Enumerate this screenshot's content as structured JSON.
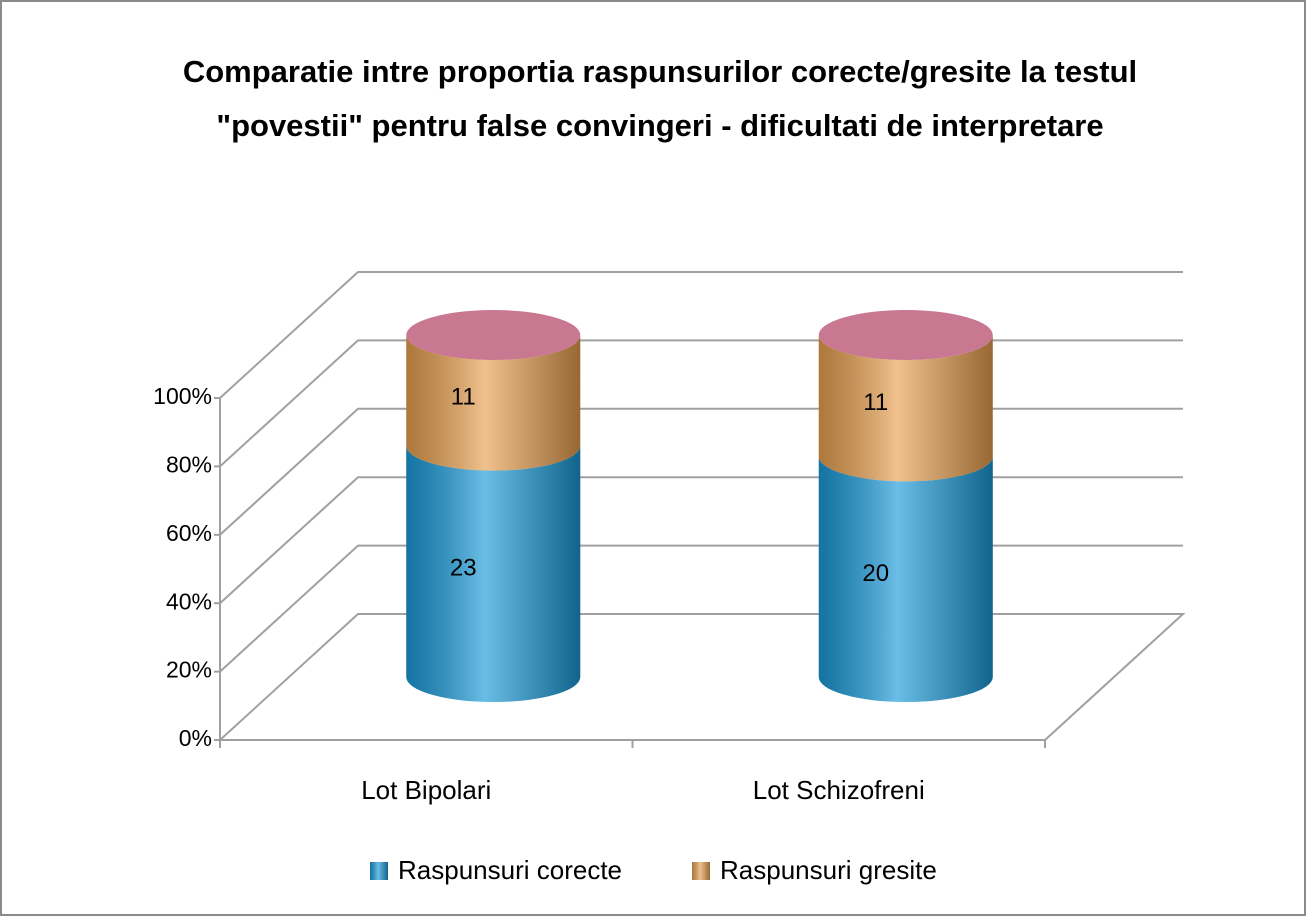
{
  "chart_data": {
    "type": "bar",
    "stack": "percent",
    "title": "Comparatie intre proportia raspunsurilor corecte/gresite la testul",
    "subtitle": "\"povestii\" pentru false convingeri - dificultati de interpretare",
    "categories": [
      "Lot Bipolari",
      "Lot Schizofreni"
    ],
    "series": [
      {
        "name": "Raspunsuri corecte",
        "color": "#1a9ad8",
        "values": [
          23,
          20
        ]
      },
      {
        "name": "Raspunsuri gresite",
        "color": "#e8a050",
        "values": [
          11,
          11
        ]
      }
    ],
    "ylim": [
      0,
      100
    ],
    "yticks": [
      {
        "value": 0,
        "label": "0%"
      },
      {
        "value": 20,
        "label": "20%"
      },
      {
        "value": 40,
        "label": "40%"
      },
      {
        "value": 60,
        "label": "60%"
      },
      {
        "value": 80,
        "label": "80%"
      },
      {
        "value": 100,
        "label": "100%"
      }
    ],
    "grid": true,
    "legend": "bottom"
  }
}
